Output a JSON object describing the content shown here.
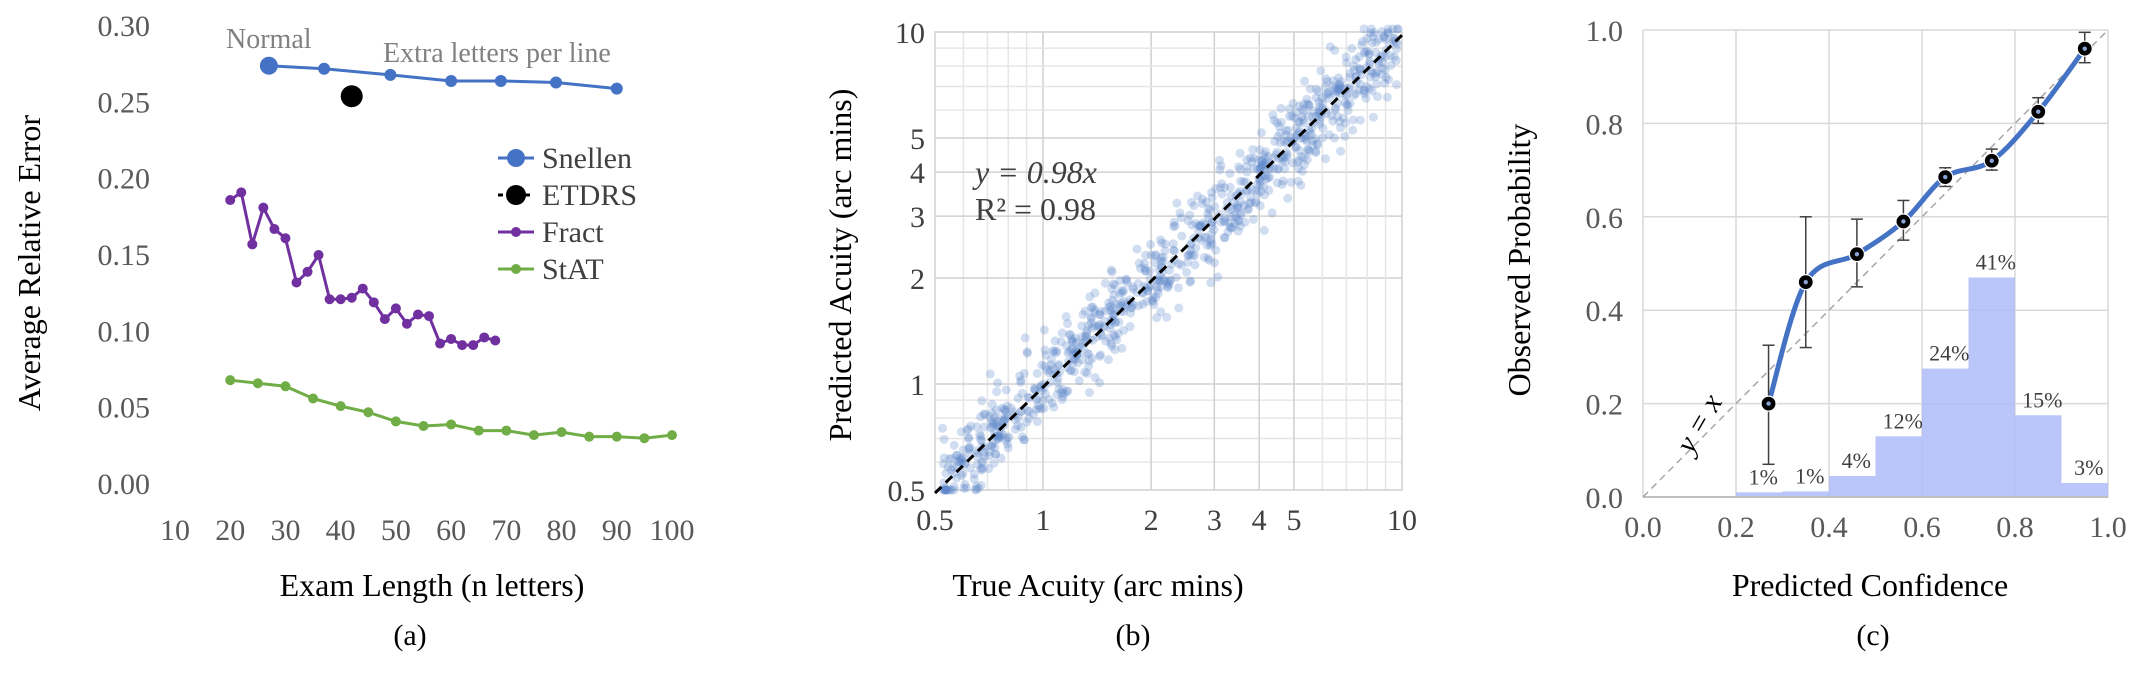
{
  "chart_data": [
    {
      "type": "line",
      "caption": "(a)",
      "xlabel": "Exam Length (n letters)",
      "ylabel": "Average Relative Error",
      "xlim": [
        10,
        100
      ],
      "ylim": [
        0,
        0.3
      ],
      "xticks": [
        "10",
        "20",
        "30",
        "40",
        "50",
        "60",
        "70",
        "80",
        "90",
        "100"
      ],
      "yticks": [
        "0.00",
        "0.05",
        "0.10",
        "0.15",
        "0.20",
        "0.25",
        "0.30"
      ],
      "grid": false,
      "legend_position": "right",
      "annotations": [
        "Normal",
        "Extra letters per line"
      ],
      "series": [
        {
          "name": "Snellen",
          "color": "#4472c4",
          "x": [
            27,
            37,
            49,
            60,
            69,
            79,
            90
          ],
          "y": [
            0.274,
            0.272,
            0.268,
            0.264,
            0.264,
            0.263,
            0.259
          ],
          "first_marker_large": true
        },
        {
          "name": "ETDRS",
          "color": "#000000",
          "x": [
            42
          ],
          "y": [
            0.254
          ]
        },
        {
          "name": "Fract",
          "color": "#7030a0",
          "x": [
            20,
            22,
            24,
            26,
            28,
            30,
            32,
            34,
            36,
            38,
            40,
            42,
            44,
            46,
            48,
            50,
            52,
            54,
            56,
            58,
            60,
            62,
            64,
            66,
            68
          ],
          "y": [
            0.186,
            0.191,
            0.157,
            0.181,
            0.167,
            0.161,
            0.132,
            0.139,
            0.15,
            0.121,
            0.121,
            0.122,
            0.128,
            0.119,
            0.108,
            0.115,
            0.105,
            0.111,
            0.11,
            0.092,
            0.095,
            0.091,
            0.091,
            0.096,
            0.094
          ]
        },
        {
          "name": "StAT",
          "color": "#70ad47",
          "x": [
            20,
            25,
            30,
            35,
            40,
            45,
            50,
            55,
            60,
            65,
            70,
            75,
            80,
            85,
            90,
            95,
            100
          ],
          "y": [
            0.068,
            0.066,
            0.064,
            0.056,
            0.051,
            0.047,
            0.041,
            0.038,
            0.039,
            0.035,
            0.035,
            0.032,
            0.034,
            0.031,
            0.031,
            0.03,
            0.032
          ]
        }
      ]
    },
    {
      "type": "scatter",
      "caption": "(b)",
      "xlabel": "True Acuity (arc mins)",
      "ylabel": "Predicted Acuity (arc mins)",
      "xscale": "log",
      "yscale": "log",
      "xlim": [
        0.5,
        10
      ],
      "ylim": [
        0.5,
        10
      ],
      "xticks": [
        0.5,
        1,
        2,
        3,
        4,
        5,
        10
      ],
      "yticks": [
        0.5,
        1,
        2,
        3,
        4,
        5,
        10
      ],
      "grid": true,
      "fit_line": {
        "slope": 0.98,
        "style": "dashed",
        "color": "#000000"
      },
      "annotation_eq": "y = 0.98x",
      "annotation_r2": "R² = 0.98",
      "point_color": "#5b84c9",
      "point_count_approx": 900,
      "point_spread_log_sd": 0.06
    },
    {
      "type": "line",
      "caption": "(c)",
      "xlabel": "Predicted Confidence",
      "ylabel": "Observed Probability",
      "xlim": [
        0,
        1
      ],
      "ylim": [
        0,
        1
      ],
      "xticks": [
        "0.0",
        "0.2",
        "0.4",
        "0.6",
        "0.8",
        "1.0"
      ],
      "yticks": [
        "0.0",
        "0.2",
        "0.4",
        "0.6",
        "0.8",
        "1.0"
      ],
      "grid": true,
      "reference_line_label": "y = x",
      "calibration": {
        "color": "#4472c4",
        "x": [
          0.27,
          0.35,
          0.46,
          0.56,
          0.65,
          0.75,
          0.85,
          0.95
        ],
        "y": [
          0.2,
          0.46,
          0.52,
          0.59,
          0.685,
          0.72,
          0.825,
          0.96
        ],
        "err_low": [
          0.07,
          0.32,
          0.45,
          0.55,
          0.665,
          0.7,
          0.8,
          0.93
        ],
        "err_high": [
          0.325,
          0.6,
          0.595,
          0.635,
          0.705,
          0.745,
          0.855,
          0.995
        ]
      },
      "histogram": {
        "color": "#aebcf9",
        "bin_edges": [
          0.2,
          0.3,
          0.4,
          0.5,
          0.6,
          0.7,
          0.8,
          0.9,
          1.0
        ],
        "labels": [
          "1%",
          "1%",
          "4%",
          "12%",
          "24%",
          "41%",
          "15%",
          "3%"
        ],
        "heights": [
          0.01,
          0.012,
          0.045,
          0.13,
          0.275,
          0.47,
          0.175,
          0.03
        ]
      }
    }
  ]
}
